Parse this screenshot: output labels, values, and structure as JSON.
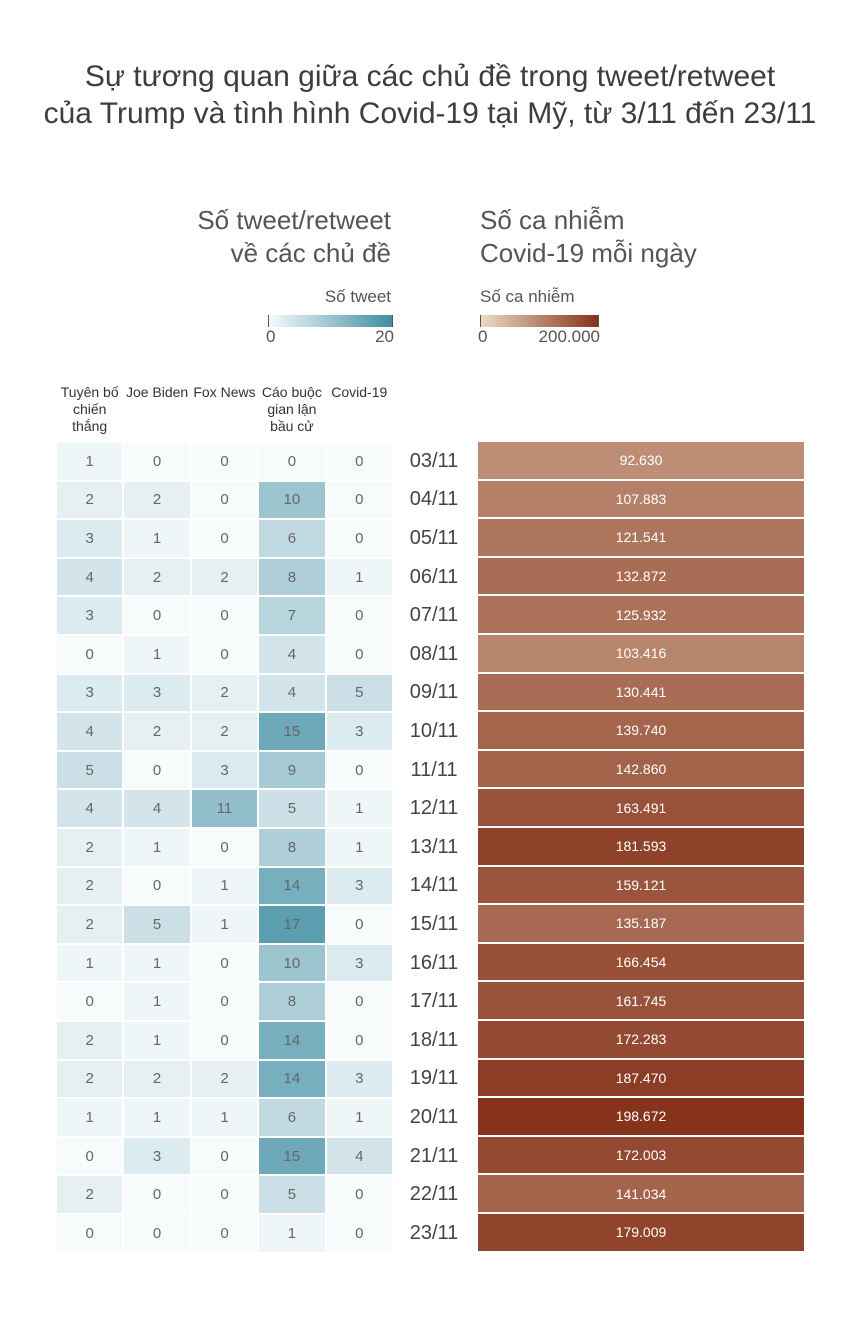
{
  "chart_data": {
    "type": "heatmap",
    "title": [
      "Sự tương quan giữa các chủ đề trong tweet/retweet",
      "của Trump và tình hình Covid-19 tại Mỹ, từ 3/11 đến 23/11"
    ],
    "heatmap": {
      "panel_title": [
        "Số tweet/retweet",
        "về các chủ đề"
      ],
      "legend_title": "Số tweet",
      "x": [
        "Tuyên bố chiến thắng",
        "Joe Biden",
        "Fox News",
        "Cáo buộc gian lận bầu cử",
        "Covid-19"
      ],
      "y": [
        "03/11",
        "04/11",
        "05/11",
        "06/11",
        "07/11",
        "08/11",
        "09/11",
        "10/11",
        "11/11",
        "12/11",
        "13/11",
        "14/11",
        "15/11",
        "16/11",
        "17/11",
        "18/11",
        "19/11",
        "20/11",
        "21/11",
        "22/11",
        "23/11"
      ],
      "z": [
        [
          1,
          0,
          0,
          0,
          0
        ],
        [
          2,
          2,
          0,
          10,
          0
        ],
        [
          3,
          1,
          0,
          6,
          0
        ],
        [
          4,
          2,
          2,
          8,
          1
        ],
        [
          3,
          0,
          0,
          7,
          0
        ],
        [
          0,
          1,
          0,
          4,
          0
        ],
        [
          3,
          3,
          2,
          4,
          5
        ],
        [
          4,
          2,
          2,
          15,
          3
        ],
        [
          5,
          0,
          3,
          9,
          0
        ],
        [
          4,
          4,
          11,
          5,
          1
        ],
        [
          2,
          1,
          0,
          8,
          1
        ],
        [
          2,
          0,
          1,
          14,
          3
        ],
        [
          2,
          5,
          1,
          17,
          0
        ],
        [
          1,
          1,
          0,
          10,
          3
        ],
        [
          0,
          1,
          0,
          8,
          0
        ],
        [
          2,
          1,
          0,
          14,
          0
        ],
        [
          2,
          2,
          2,
          14,
          3
        ],
        [
          1,
          1,
          1,
          6,
          1
        ],
        [
          0,
          3,
          0,
          15,
          4
        ],
        [
          2,
          0,
          0,
          5,
          0
        ],
        [
          0,
          0,
          0,
          1,
          0
        ]
      ],
      "colors": [
        "#f8fbfc",
        "#3f8ea3"
      ],
      "zlim": [
        0,
        20
      ],
      "zticks": [
        0,
        20
      ]
    },
    "cases": {
      "panel_title": [
        "Số ca nhiễm",
        "Covid-19 mỗi ngày"
      ],
      "legend_title": "Số ca nhiễm",
      "values": [
        92630,
        107883,
        121541,
        132872,
        125932,
        103416,
        130441,
        139740,
        142860,
        163491,
        181593,
        159121,
        135187,
        166454,
        161745,
        172283,
        187470,
        198672,
        172003,
        141034,
        179009
      ],
      "value_labels": [
        "92.630",
        "107.883",
        "121.541",
        "132.872",
        "125.932",
        "103.416",
        "130.441",
        "139.740",
        "142.860",
        "163.491",
        "181.593",
        "159.121",
        "135.187",
        "166.454",
        "161.745",
        "172.283",
        "187.470",
        "198.672",
        "172.003",
        "141.034",
        "179.009"
      ],
      "colors": [
        "#ecdcc4",
        "#86321a"
      ],
      "lim": [
        0,
        200000
      ],
      "ticks": [
        0,
        {
          "value": 200000,
          "label": "200.000"
        }
      ]
    }
  }
}
